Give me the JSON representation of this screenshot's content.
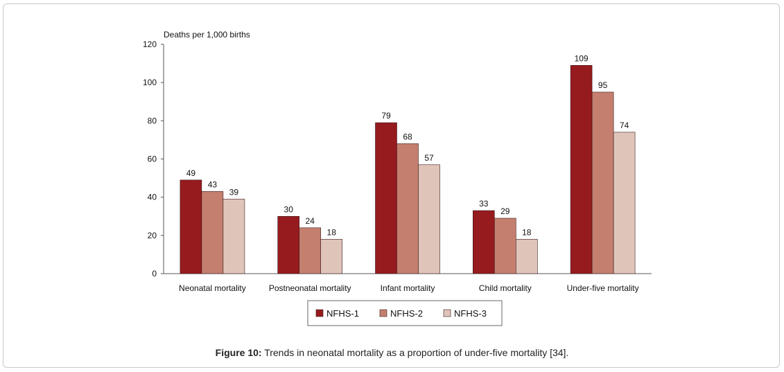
{
  "chart_data": {
    "type": "bar",
    "ylabel": "Deaths per 1,000 births",
    "ylim": [
      0,
      120
    ],
    "yticks": [
      0,
      20,
      40,
      60,
      80,
      100,
      120
    ],
    "categories": [
      "Neonatal mortality",
      "Postneonatal mortality",
      "Infant mortality",
      "Child mortality",
      "Under-five mortality"
    ],
    "series": [
      {
        "name": "NFHS-1",
        "color": "#961b1e",
        "values": [
          49,
          30,
          79,
          33,
          109
        ]
      },
      {
        "name": "NFHS-2",
        "color": "#c47f6f",
        "values": [
          43,
          24,
          68,
          29,
          95
        ]
      },
      {
        "name": "NFHS-3",
        "color": "#dfc4b9",
        "values": [
          39,
          18,
          57,
          18,
          74
        ]
      }
    ],
    "legend_position": "bottom"
  },
  "caption": {
    "label": "Figure 10:",
    "text": " Trends in neonatal mortality as a proportion of under-five mortality [34]."
  }
}
